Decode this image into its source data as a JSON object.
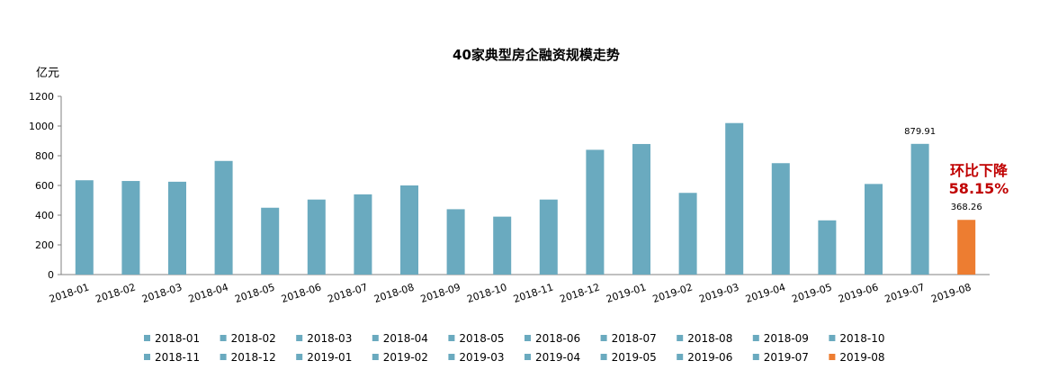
{
  "chart_data": {
    "type": "bar",
    "title": "40家典型房企融资规模走势",
    "ylabel": "亿元",
    "xlabel": "",
    "ylim": [
      0,
      1200
    ],
    "yticks": [
      0,
      200,
      400,
      600,
      800,
      1000,
      1200
    ],
    "grid": false,
    "legend_position": "bottom",
    "categories": [
      "2018-01",
      "2018-02",
      "2018-03",
      "2018-04",
      "2018-05",
      "2018-06",
      "2018-07",
      "2018-08",
      "2018-09",
      "2018-10",
      "2018-11",
      "2018-12",
      "2019-01",
      "2019-02",
      "2019-03",
      "2019-04",
      "2019-05",
      "2019-06",
      "2019-07",
      "2019-08"
    ],
    "values": [
      635,
      630,
      625,
      765,
      450,
      505,
      540,
      600,
      440,
      390,
      505,
      840,
      879,
      550,
      1020,
      750,
      365,
      610,
      879.91,
      368.26
    ],
    "colors": [
      "#6aaabf",
      "#6aaabf",
      "#6aaabf",
      "#6aaabf",
      "#6aaabf",
      "#6aaabf",
      "#6aaabf",
      "#6aaabf",
      "#6aaabf",
      "#6aaabf",
      "#6aaabf",
      "#6aaabf",
      "#6aaabf",
      "#6aaabf",
      "#6aaabf",
      "#6aaabf",
      "#6aaabf",
      "#6aaabf",
      "#6aaabf",
      "#ed7d31"
    ],
    "data_labels": [
      {
        "index": 18,
        "text": "879.91"
      },
      {
        "index": 19,
        "text": "368.26"
      }
    ],
    "annotation": {
      "line1": "环比下降",
      "line2": "58.15%",
      "color": "#c00000"
    },
    "legend": [
      "2018-01",
      "2018-02",
      "2018-03",
      "2018-04",
      "2018-05",
      "2018-06",
      "2018-07",
      "2018-08",
      "2018-09",
      "2018-10",
      "2018-11",
      "2018-12",
      "2019-01",
      "2019-02",
      "2019-03",
      "2019-04",
      "2019-05",
      "2019-06",
      "2019-07",
      "2019-08"
    ]
  }
}
